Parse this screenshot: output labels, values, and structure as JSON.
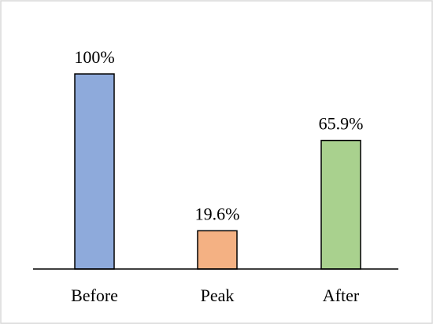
{
  "chart_data": {
    "type": "bar",
    "categories": [
      "Before",
      "Peak",
      "After"
    ],
    "values": [
      100,
      19.6,
      65.9
    ],
    "data_labels": [
      "100%",
      "19.6%",
      "65.9%"
    ],
    "colors": [
      "#8eaadb",
      "#f4b183",
      "#a9d18e"
    ],
    "ylim": [
      0,
      100
    ],
    "grid": false,
    "legend": false
  }
}
